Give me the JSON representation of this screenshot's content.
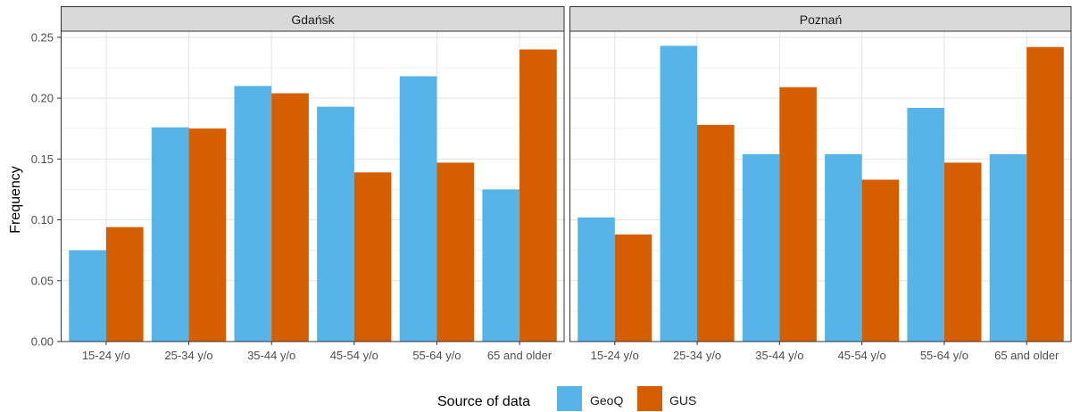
{
  "chart_data": {
    "type": "bar",
    "ylabel": "Frequency",
    "xlabel": "",
    "ylim": [
      0,
      0.255
    ],
    "yticks": [
      "0.00",
      "0.05",
      "0.10",
      "0.15",
      "0.20",
      "0.25"
    ],
    "ytick_values": [
      0,
      0.05,
      0.1,
      0.15,
      0.2,
      0.25
    ],
    "grid": true,
    "legend_position": "bottom",
    "legend": {
      "title": "Source of data",
      "entries": [
        {
          "name": "GeoQ",
          "color": "#56B4E9"
        },
        {
          "name": "GUS",
          "color": "#D55E00"
        }
      ]
    },
    "categories": [
      "15-24 y/o",
      "25-34 y/o",
      "35-44 y/o",
      "45-54 y/o",
      "55-64 y/o",
      "65 and older"
    ],
    "panels": [
      {
        "title": "Gdańsk",
        "series": [
          {
            "name": "GeoQ",
            "values": [
              0.075,
              0.176,
              0.21,
              0.193,
              0.218,
              0.125
            ]
          },
          {
            "name": "GUS",
            "values": [
              0.094,
              0.175,
              0.204,
              0.139,
              0.147,
              0.24
            ]
          }
        ]
      },
      {
        "title": "Poznań",
        "series": [
          {
            "name": "GeoQ",
            "values": [
              0.102,
              0.243,
              0.154,
              0.154,
              0.192,
              0.154
            ]
          },
          {
            "name": "GUS",
            "values": [
              0.088,
              0.178,
              0.209,
              0.133,
              0.147,
              0.242
            ]
          }
        ]
      }
    ]
  }
}
